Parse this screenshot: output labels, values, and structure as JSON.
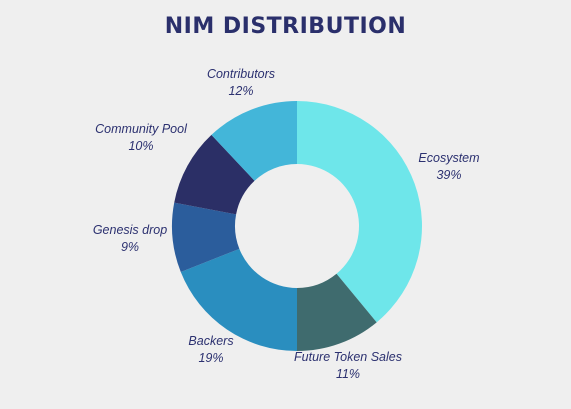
{
  "chart_data": {
    "type": "pie",
    "title": "NIM DISTRIBUTION",
    "slices": [
      {
        "label": "Ecosystem",
        "value": 39,
        "value_label": "39%",
        "color": "#6ee6ea"
      },
      {
        "label": "Future Token Sales",
        "value": 11,
        "value_label": "11%",
        "color": "#3f6b6e"
      },
      {
        "label": "Backers",
        "value": 19,
        "value_label": "19%",
        "color": "#2a8ebf"
      },
      {
        "label": "Genesis drop",
        "value": 9,
        "value_label": "9%",
        "color": "#2b5d9c"
      },
      {
        "label": "Community Pool",
        "value": 10,
        "value_label": "10%",
        "color": "#2b2f66"
      },
      {
        "label": "Contributors",
        "value": 12,
        "value_label": "12%",
        "color": "#43b6d9"
      }
    ],
    "donut": true,
    "legend": "none",
    "labels": "outside"
  }
}
